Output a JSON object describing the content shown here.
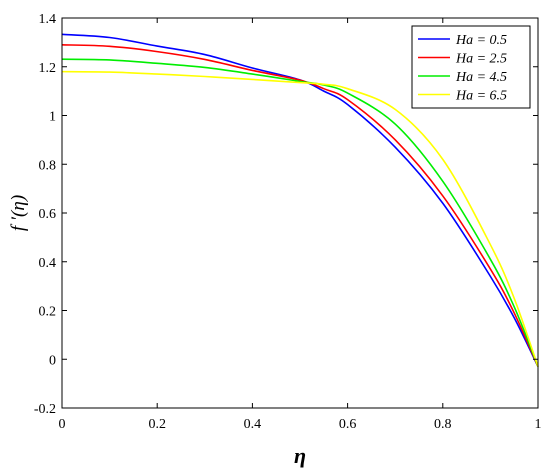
{
  "chart_data": {
    "type": "line",
    "xlabel": "η",
    "ylabel": "f ′(η)",
    "xlim": [
      0,
      1
    ],
    "ylim": [
      -0.2,
      1.4
    ],
    "xticks": [
      0,
      0.2,
      0.4,
      0.6,
      0.8,
      1
    ],
    "xtick_labels": [
      "0",
      "0.2",
      "0.4",
      "0.6",
      "0.8",
      "1"
    ],
    "yticks": [
      -0.2,
      0,
      0.2,
      0.4,
      0.6,
      0.8,
      1,
      1.2,
      1.4
    ],
    "ytick_labels": [
      "-0.2",
      "0",
      "0.2",
      "0.4",
      "0.6",
      "0.8",
      "1",
      "1.2",
      "1.4"
    ],
    "grid": false,
    "legend_position": "top-right",
    "x": [
      0,
      0.1,
      0.2,
      0.3,
      0.4,
      0.5,
      0.55,
      0.6,
      0.7,
      0.8,
      0.9,
      0.95,
      1.0
    ],
    "series": [
      {
        "name": "Ha = 0.5",
        "color": "#0000ff",
        "values": [
          1.333,
          1.32,
          1.285,
          1.25,
          1.195,
          1.146,
          1.1,
          1.045,
          0.87,
          0.64,
          0.34,
          0.17,
          -0.03
        ]
      },
      {
        "name": "Ha = 2.5",
        "color": "#ff0000",
        "values": [
          1.29,
          1.284,
          1.262,
          1.23,
          1.185,
          1.145,
          1.11,
          1.065,
          0.9,
          0.67,
          0.37,
          0.19,
          -0.03
        ]
      },
      {
        "name": "Ha = 4.5",
        "color": "#00ee00",
        "values": [
          1.231,
          1.228,
          1.214,
          1.197,
          1.17,
          1.14,
          1.125,
          1.092,
          0.965,
          0.73,
          0.41,
          0.215,
          -0.03
        ]
      },
      {
        "name": "Ha = 6.5",
        "color": "#ffff00",
        "values": [
          1.18,
          1.178,
          1.17,
          1.16,
          1.148,
          1.135,
          1.128,
          1.11,
          1.025,
          0.82,
          0.47,
          0.25,
          -0.03
        ]
      }
    ]
  }
}
